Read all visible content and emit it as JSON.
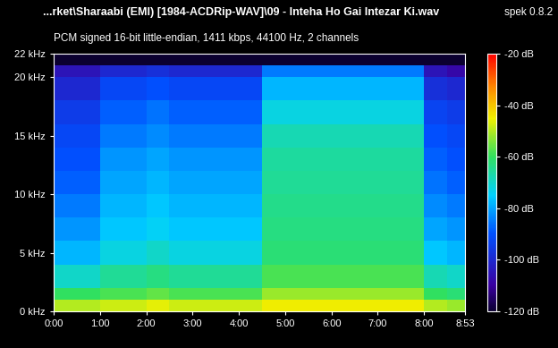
{
  "chart_data": {
    "type": "heatmap",
    "title": "...rket\\Sharaabi (EMI) [1984-ACDRip-WAV]\\09 - Inteha Ho Gai Intezar Ki.wav",
    "subtitle": "PCM signed 16-bit little-endian, 1411 kbps, 44100 Hz, 2 channels",
    "annotations": [
      "spek 0.8.2"
    ],
    "x_edges": [
      0,
      30,
      60,
      90,
      120,
      150,
      180,
      210,
      240,
      270,
      300,
      330,
      360,
      390,
      420,
      450,
      480,
      510,
      533
    ],
    "y_edges": [
      0,
      1,
      2,
      4,
      6,
      8,
      10,
      12,
      14,
      16,
      18,
      20,
      21,
      22
    ],
    "cells": [
      [
        -50,
        -50,
        -48,
        -48,
        -46,
        -48,
        -48,
        -48,
        -48,
        -45,
        -45,
        -45,
        -45,
        -45,
        -45,
        -45,
        -50,
        -52
      ],
      [
        -60,
        -60,
        -58,
        -58,
        -56,
        -58,
        -58,
        -58,
        -58,
        -52,
        -52,
        -52,
        -52,
        -52,
        -52,
        -52,
        -60,
        -62
      ],
      [
        -70,
        -70,
        -65,
        -65,
        -63,
        -65,
        -65,
        -65,
        -65,
        -58,
        -58,
        -58,
        -58,
        -58,
        -58,
        -58,
        -68,
        -70
      ],
      [
        -78,
        -78,
        -72,
        -72,
        -70,
        -72,
        -72,
        -72,
        -72,
        -62,
        -62,
        -62,
        -62,
        -62,
        -62,
        -62,
        -76,
        -78
      ],
      [
        -82,
        -82,
        -76,
        -76,
        -74,
        -76,
        -76,
        -76,
        -76,
        -63,
        -63,
        -63,
        -63,
        -63,
        -63,
        -63,
        -80,
        -82
      ],
      [
        -85,
        -85,
        -78,
        -78,
        -76,
        -78,
        -78,
        -78,
        -78,
        -64,
        -64,
        -64,
        -64,
        -64,
        -64,
        -64,
        -83,
        -85
      ],
      [
        -88,
        -88,
        -80,
        -80,
        -78,
        -80,
        -80,
        -80,
        -80,
        -65,
        -65,
        -65,
        -65,
        -65,
        -65,
        -65,
        -86,
        -88
      ],
      [
        -90,
        -90,
        -82,
        -82,
        -80,
        -82,
        -82,
        -82,
        -82,
        -66,
        -66,
        -66,
        -66,
        -66,
        -66,
        -66,
        -88,
        -90
      ],
      [
        -92,
        -92,
        -85,
        -85,
        -83,
        -85,
        -85,
        -85,
        -85,
        -68,
        -68,
        -68,
        -68,
        -68,
        -68,
        -68,
        -90,
        -92
      ],
      [
        -95,
        -95,
        -88,
        -88,
        -86,
        -88,
        -88,
        -88,
        -88,
        -72,
        -72,
        -72,
        -72,
        -72,
        -72,
        -72,
        -93,
        -95
      ],
      [
        -100,
        -100,
        -92,
        -92,
        -90,
        -92,
        -92,
        -92,
        -92,
        -78,
        -78,
        -78,
        -78,
        -78,
        -78,
        -78,
        -98,
        -100
      ],
      [
        -105,
        -105,
        -100,
        -100,
        -98,
        -100,
        -100,
        -100,
        -100,
        -85,
        -85,
        -85,
        -85,
        -85,
        -85,
        -85,
        -105,
        -108
      ],
      [
        -120,
        -120,
        -120,
        -120,
        -120,
        -120,
        -120,
        -120,
        -120,
        -120,
        -120,
        -120,
        -120,
        -120,
        -120,
        -120,
        -120,
        -120
      ]
    ],
    "xlim": [
      0,
      533
    ],
    "xticks": [
      {
        "value": 0,
        "label": "0:00"
      },
      {
        "value": 60,
        "label": "1:00"
      },
      {
        "value": 120,
        "label": "2:00"
      },
      {
        "value": 180,
        "label": "3:00"
      },
      {
        "value": 240,
        "label": "4:00"
      },
      {
        "value": 300,
        "label": "5:00"
      },
      {
        "value": 360,
        "label": "6:00"
      },
      {
        "value": 420,
        "label": "7:00"
      },
      {
        "value": 480,
        "label": "8:00"
      },
      {
        "value": 533,
        "label": "8:53"
      }
    ],
    "ylim": [
      0,
      22
    ],
    "yticks": [
      {
        "value": 0,
        "label": "0 kHz"
      },
      {
        "value": 5,
        "label": "5 kHz"
      },
      {
        "value": 10,
        "label": "10 kHz"
      },
      {
        "value": 15,
        "label": "15 kHz"
      },
      {
        "value": 20,
        "label": "20 kHz"
      },
      {
        "value": 22,
        "label": "22 kHz"
      }
    ],
    "colorbar_range": [
      -120,
      -20
    ],
    "colorbar_ticks": [
      {
        "value": -20,
        "label": "-20 dB"
      },
      {
        "value": -40,
        "label": "-40 dB"
      },
      {
        "value": -60,
        "label": "-60 dB"
      },
      {
        "value": -80,
        "label": "-80 dB"
      },
      {
        "value": -100,
        "label": "-100 dB"
      },
      {
        "value": -120,
        "label": "-120 dB"
      }
    ]
  }
}
